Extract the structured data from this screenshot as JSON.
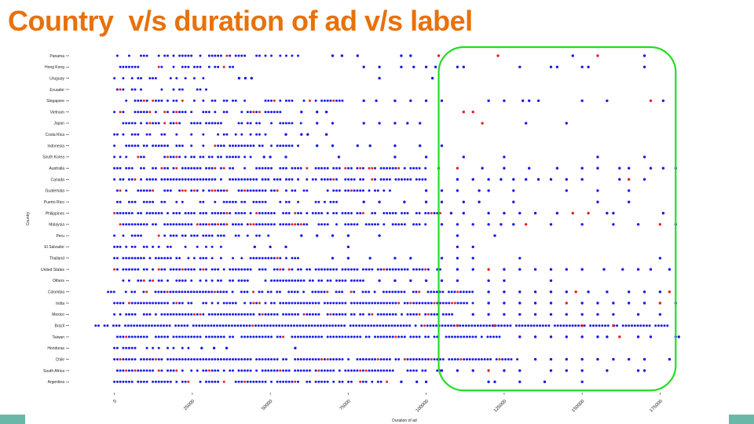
{
  "slide": {
    "title": "Country  v/s duration of ad v/s label"
  },
  "colors": {
    "title": "#e8710a",
    "label_0": "#1a1ae6",
    "label_1": "#e62020",
    "highlight": "#22dd22",
    "accent": "#6ab7a7"
  },
  "chart_data": {
    "type": "scatter",
    "title": "",
    "xlabel": "Duration of ad",
    "ylabel": "Country",
    "xlim": [
      -14000,
      190000
    ],
    "x_ticks": [
      0,
      25000,
      50000,
      75000,
      100000,
      125000,
      150000,
      175000
    ],
    "x_tick_labels": [
      "0",
      "25000",
      "50000",
      "75000",
      "100000",
      "125000",
      "150000",
      "175000"
    ],
    "grid": false,
    "series_colors": {
      "0": "#1a1ae6",
      "1": "#e62020"
    },
    "categories": [
      "Panama",
      "Hong Kong",
      "Uruguay",
      "Ecuador",
      "Singapore",
      "Vietnam",
      "Japan",
      "Costa Rica",
      "Indonesia",
      "South Korea",
      "Australia",
      "Canada",
      "Guatemala",
      "Puerto Rico",
      "Philippines",
      "Malaysia",
      "Peru",
      "El Salvador",
      "Thailand",
      "United States",
      "Others",
      "Colombia",
      "India",
      "Mexico",
      "Brazil",
      "Taiwan",
      "Honduras",
      "Chile",
      "South Africa",
      "Argentina"
    ],
    "spans": [
      [
        0,
        62000,
        0.55,
        0.1
      ],
      [
        0,
        38000,
        0.55,
        0.05
      ],
      [
        0,
        30000,
        0.4,
        0.0
      ],
      [
        0,
        30000,
        0.45,
        0.05
      ],
      [
        0,
        75000,
        0.6,
        0.1
      ],
      [
        0,
        55000,
        0.5,
        0.1
      ],
      [
        0,
        60000,
        0.55,
        0.1
      ],
      [
        0,
        50000,
        0.5,
        0.05
      ],
      [
        0,
        60000,
        0.55,
        0.05
      ],
      [
        0,
        45000,
        0.5,
        0.05
      ],
      [
        0,
        100000,
        0.7,
        0.1
      ],
      [
        0,
        100000,
        0.75,
        0.05
      ],
      [
        0,
        90000,
        0.65,
        0.1
      ],
      [
        0,
        75000,
        0.6,
        0.05
      ],
      [
        0,
        105000,
        0.75,
        0.08
      ],
      [
        0,
        100000,
        0.75,
        0.08
      ],
      [
        0,
        50000,
        0.5,
        0.05
      ],
      [
        0,
        35000,
        0.45,
        0.05
      ],
      [
        0,
        62000,
        0.55,
        0.05
      ],
      [
        0,
        105000,
        0.8,
        0.1
      ],
      [
        0,
        80000,
        0.65,
        0.08
      ],
      [
        -2000,
        115000,
        0.8,
        0.1
      ],
      [
        0,
        115000,
        0.85,
        0.12
      ],
      [
        0,
        110000,
        0.8,
        0.1
      ],
      [
        -6000,
        178000,
        0.95,
        0.03
      ],
      [
        0,
        125000,
        0.85,
        0.05
      ],
      [
        0,
        25000,
        0.45,
        0.0
      ],
      [
        0,
        130000,
        0.85,
        0.08
      ],
      [
        0,
        105000,
        0.75,
        0.08
      ],
      [
        0,
        90000,
        0.7,
        0.05
      ]
    ],
    "outliers": [
      {
        "country": "Panama",
        "x": [
          70000,
          73000,
          78000,
          92000,
          95000,
          104000,
          123000,
          147000,
          155000,
          170000
        ],
        "label": [
          0,
          0,
          0,
          0,
          0,
          1,
          1,
          0,
          1,
          0
        ]
      },
      {
        "country": "Hong Kong",
        "x": [
          80000,
          85000,
          92000,
          96000,
          100000,
          103000,
          110000,
          112000,
          130000,
          140000,
          142000,
          150000,
          152000,
          170000
        ],
        "label": [
          0,
          0,
          0,
          0,
          0,
          0,
          0,
          0,
          0,
          0,
          0,
          0,
          0,
          0
        ]
      },
      {
        "country": "Uruguay",
        "x": [
          40000,
          42000,
          44000,
          85000,
          102000
        ],
        "label": [
          0,
          0,
          0,
          0,
          0
        ]
      },
      {
        "country": "Singapore",
        "x": [
          80000,
          84000,
          90000,
          95000,
          100000,
          105000,
          120000,
          125000,
          131000,
          133000,
          136000,
          150000,
          158000,
          172000,
          176000
        ],
        "label": [
          0,
          0,
          0,
          0,
          0,
          0,
          0,
          0,
          0,
          0,
          0,
          0,
          0,
          1,
          0
        ]
      },
      {
        "country": "Vietnam",
        "x": [
          60000,
          65000,
          68000,
          112000,
          115000
        ],
        "label": [
          0,
          0,
          0,
          1,
          1
        ]
      },
      {
        "country": "Japan",
        "x": [
          65000,
          70000,
          80000,
          85000,
          90000,
          94000,
          98000,
          118000,
          132000,
          145000
        ],
        "label": [
          0,
          0,
          0,
          0,
          0,
          0,
          0,
          1,
          0,
          0
        ]
      },
      {
        "country": "Costa Rica",
        "x": [
          55000,
          60000,
          62000,
          68000
        ],
        "label": [
          0,
          0,
          0,
          0
        ]
      },
      {
        "country": "Indonesia",
        "x": [
          65000,
          70000,
          78000,
          82000,
          90000,
          98000,
          105000
        ],
        "label": [
          0,
          0,
          0,
          0,
          0,
          0,
          0
        ]
      },
      {
        "country": "South Korea",
        "x": [
          48000,
          50000,
          55000,
          72000,
          90000,
          100000,
          112000,
          125000,
          155000,
          170000
        ],
        "label": [
          0,
          0,
          0,
          0,
          0,
          0,
          0,
          0,
          0,
          0
        ]
      },
      {
        "country": "Australia",
        "x": [
          104000,
          110000,
          118000,
          125000,
          133000,
          142000,
          150000,
          155000,
          162000,
          165000,
          172000,
          176000,
          180000
        ],
        "label": [
          0,
          1,
          0,
          0,
          0,
          0,
          0,
          0,
          0,
          0,
          0,
          0,
          0
        ]
      },
      {
        "country": "Canada",
        "x": [
          110000,
          115000,
          120000,
          124000,
          128000,
          132000,
          136000,
          140000,
          145000,
          150000,
          162000,
          165000,
          170000
        ],
        "label": [
          0,
          0,
          0,
          0,
          0,
          0,
          0,
          0,
          0,
          0,
          0,
          1,
          0
        ]
      },
      {
        "country": "Guatemala",
        "x": [
          100000,
          105000,
          110000,
          117000,
          120000,
          128000,
          145000,
          155000,
          165000
        ],
        "label": [
          0,
          0,
          0,
          0,
          0,
          0,
          0,
          0,
          0
        ]
      },
      {
        "country": "Puerto Rico",
        "x": [
          80000,
          85000,
          93000,
          100000,
          105000,
          112000,
          117000,
          128000,
          155000,
          165000
        ],
        "label": [
          0,
          0,
          0,
          0,
          0,
          0,
          0,
          0,
          0,
          0
        ]
      },
      {
        "country": "Philippines",
        "x": [
          108000,
          112000,
          120000,
          125000,
          130000,
          135000,
          142000,
          147000,
          152000,
          158000,
          160000,
          176000
        ],
        "label": [
          0,
          0,
          0,
          0,
          0,
          0,
          0,
          1,
          1,
          0,
          0,
          0
        ]
      },
      {
        "country": "Malaysia",
        "x": [
          105000,
          110000,
          115000,
          120000,
          124000,
          128000,
          132000,
          140000,
          150000,
          160000,
          168000,
          175000,
          180000
        ],
        "label": [
          0,
          0,
          0,
          0,
          0,
          0,
          1,
          0,
          0,
          0,
          0,
          1,
          0
        ]
      },
      {
        "country": "Peru",
        "x": [
          60000,
          65000,
          70000,
          75000,
          85000,
          110000,
          122000
        ],
        "label": [
          0,
          0,
          0,
          0,
          0,
          0,
          0
        ]
      },
      {
        "country": "El Salvador",
        "x": [
          45000,
          50000,
          55000,
          75000,
          110000,
          115000
        ],
        "label": [
          0,
          0,
          0,
          0,
          0,
          0
        ]
      },
      {
        "country": "Thailand",
        "x": [
          70000,
          75000,
          82000,
          90000,
          95000,
          105000,
          110000,
          115000,
          130000,
          175000
        ],
        "label": [
          0,
          0,
          0,
          0,
          0,
          0,
          0,
          0,
          0,
          0
        ]
      },
      {
        "country": "United States",
        "x": [
          110000,
          115000,
          120000,
          125000,
          130000,
          135000,
          140000,
          145000,
          150000,
          157000,
          163000,
          168000,
          172000,
          178000
        ],
        "label": [
          0,
          0,
          1,
          0,
          0,
          0,
          0,
          0,
          0,
          0,
          0,
          0,
          0,
          0
        ]
      },
      {
        "country": "Others",
        "x": [
          85000,
          90000,
          95000,
          100000,
          105000,
          110000,
          120000,
          125000,
          140000
        ],
        "label": [
          0,
          0,
          0,
          0,
          0,
          0,
          0,
          0,
          0
        ]
      },
      {
        "country": "Colombia",
        "x": [
          120000,
          125000,
          130000,
          135000,
          140000,
          145000,
          148000,
          152000,
          158000,
          165000,
          170000,
          175000,
          178000
        ],
        "label": [
          0,
          0,
          0,
          0,
          0,
          0,
          1,
          0,
          0,
          0,
          0,
          0,
          1
        ]
      },
      {
        "country": "India",
        "x": [
          120000,
          125000,
          130000,
          135000,
          140000,
          145000,
          150000,
          155000,
          160000,
          165000,
          170000,
          175000,
          180000
        ],
        "label": [
          0,
          0,
          0,
          0,
          0,
          1,
          0,
          0,
          0,
          0,
          0,
          1,
          0
        ]
      },
      {
        "country": "Mexico",
        "x": [
          115000,
          120000,
          125000,
          130000,
          135000,
          140000,
          145000,
          150000,
          155000,
          160000,
          168000,
          175000
        ],
        "label": [
          0,
          0,
          0,
          0,
          0,
          0,
          0,
          0,
          0,
          0,
          0,
          0
        ]
      },
      {
        "country": "Brazil",
        "x": [
          110000,
          122000,
          150000,
          160000
        ],
        "label": [
          1,
          1,
          1,
          1
        ]
      },
      {
        "country": "Taiwan",
        "x": [
          130000,
          135000,
          140000,
          145000,
          150000,
          155000,
          158000,
          162000,
          168000,
          172000,
          180000,
          181000
        ],
        "label": [
          0,
          0,
          0,
          0,
          0,
          0,
          0,
          1,
          0,
          0,
          0,
          0
        ]
      },
      {
        "country": "Honduras",
        "x": [
          28000,
          32000,
          36000,
          58000
        ],
        "label": [
          0,
          0,
          0,
          0
        ]
      },
      {
        "country": "Chile",
        "x": [
          135000,
          140000,
          145000,
          150000,
          155000,
          160000,
          165000,
          170000,
          178000
        ],
        "label": [
          0,
          0,
          0,
          0,
          0,
          0,
          0,
          0,
          0
        ]
      },
      {
        "country": "South Africa",
        "x": [
          105000,
          110000,
          115000,
          120000,
          125000,
          130000,
          140000,
          145000,
          150000,
          158000,
          168000,
          170000
        ],
        "label": [
          0,
          0,
          0,
          1,
          0,
          0,
          0,
          0,
          0,
          0,
          0,
          0
        ]
      },
      {
        "country": "Argentina",
        "x": [
          92000,
          97000,
          100000,
          120000,
          122000,
          130000,
          138000,
          150000
        ],
        "label": [
          0,
          0,
          0,
          0,
          0,
          0,
          0,
          0
        ]
      }
    ],
    "highlight_region": {
      "x": [
        104000,
        180000
      ],
      "y": [
        "Panama",
        "Argentina"
      ],
      "color": "#22dd22"
    }
  }
}
